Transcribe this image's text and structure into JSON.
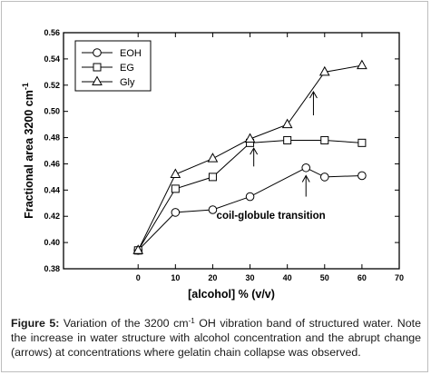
{
  "chart_data": {
    "type": "line",
    "x": [
      0,
      10,
      20,
      30,
      40,
      45,
      50,
      60
    ],
    "series": [
      {
        "name": "EOH",
        "marker": "circle",
        "points": [
          [
            0,
            0.394
          ],
          [
            10,
            0.423
          ],
          [
            20,
            0.425
          ],
          [
            30,
            0.435
          ],
          [
            45,
            0.457
          ],
          [
            50,
            0.45
          ],
          [
            60,
            0.451
          ]
        ]
      },
      {
        "name": "EG",
        "marker": "square",
        "points": [
          [
            0,
            0.394
          ],
          [
            10,
            0.441
          ],
          [
            20,
            0.45
          ],
          [
            30,
            0.476
          ],
          [
            40,
            0.478
          ],
          [
            50,
            0.478
          ],
          [
            60,
            0.476
          ]
        ]
      },
      {
        "name": "Gly",
        "marker": "triangle",
        "points": [
          [
            0,
            0.394
          ],
          [
            10,
            0.452
          ],
          [
            20,
            0.464
          ],
          [
            30,
            0.479
          ],
          [
            40,
            0.49
          ],
          [
            50,
            0.53
          ],
          [
            60,
            0.535
          ]
        ]
      }
    ],
    "xlabel": "[alcohol] % (v/v)",
    "ylabel": "Fractional area 3200 cm",
    "ylabel_sup": "-1",
    "xlim": [
      -20,
      70
    ],
    "ylim": [
      0.38,
      0.56
    ],
    "xticks": [
      0,
      10,
      20,
      30,
      40,
      50,
      60,
      70
    ],
    "yticks": [
      0.38,
      0.4,
      0.42,
      0.44,
      0.46,
      0.48,
      0.5,
      0.52,
      0.54,
      0.56
    ],
    "xtick_labels": [
      "0",
      "10",
      "20",
      "30",
      "40",
      "50",
      "60",
      "70"
    ],
    "ytick_labels": [
      "0.38",
      "0.40",
      "0.42",
      "0.44",
      "0.46",
      "0.48",
      "0.50",
      "0.52",
      "0.54",
      "0.56"
    ],
    "grid": false,
    "legend_position": "top-left",
    "annotation": {
      "text": "coil-globule transition",
      "x": 21,
      "y": 0.418
    },
    "arrows": [
      {
        "x": 31,
        "y_from": 0.472,
        "y_to": 0.458
      },
      {
        "x": 45,
        "y_from": 0.451,
        "y_to": 0.435
      },
      {
        "x": 47,
        "y_from": 0.515,
        "y_to": 0.497
      }
    ]
  },
  "caption": {
    "label": "Figure 5:",
    "line1_before_sup": "Variation of the 3200 cm",
    "line1_sup": "-1",
    "line1_after_sup": "OH vibration band of structured water.",
    "line2": "Note the increase in water structure with alcohol concentration and the abrupt",
    "line3": "change (arrows) at concentrations where gelatin chain collapse was observed."
  }
}
